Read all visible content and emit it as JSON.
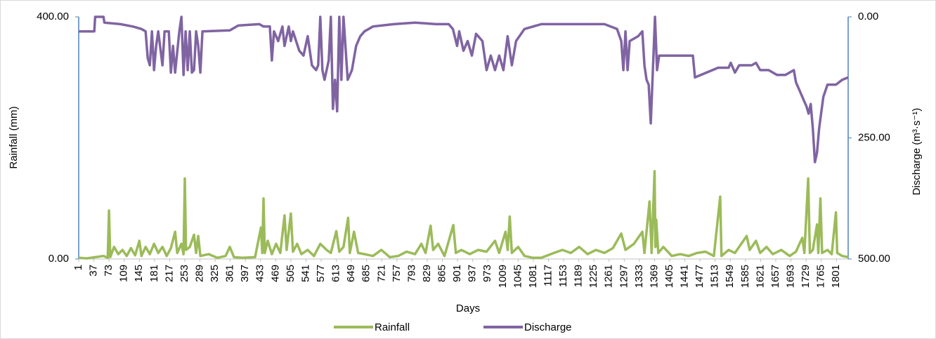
{
  "chart_data": {
    "type": "line",
    "x_label": "Days",
    "y_label": "Rainfall (mm)",
    "y2_label": "Discharge (m³·s⁻¹)",
    "xlim": [
      1,
      1829
    ],
    "xticks": [
      1,
      37,
      73,
      109,
      145,
      181,
      217,
      253,
      289,
      325,
      361,
      397,
      433,
      469,
      505,
      541,
      577,
      613,
      649,
      685,
      721,
      757,
      793,
      829,
      865,
      901,
      937,
      973,
      1009,
      1045,
      1081,
      1117,
      1153,
      1189,
      1225,
      1261,
      1297,
      1333,
      1369,
      1405,
      1441,
      1477,
      1513,
      1549,
      1585,
      1621,
      1657,
      1693,
      1729,
      1765,
      1801
    ],
    "ylim": [
      0,
      400
    ],
    "yticks": [
      {
        "value": 0,
        "label": "0.00"
      },
      {
        "value": 400,
        "label": "400.00"
      }
    ],
    "y2lim": [
      0,
      500
    ],
    "y2_inverted": true,
    "y2ticks": [
      {
        "value": 0,
        "label": "0.00"
      },
      {
        "value": 250,
        "label": "250.00"
      },
      {
        "value": 500,
        "label": "500.00"
      }
    ],
    "legend": "bottom",
    "series": [
      {
        "name": "Rainfall",
        "color": "#9bbb59",
        "x": [
          1,
          20,
          40,
          60,
          70,
          73,
          76,
          85,
          95,
          105,
          115,
          125,
          135,
          145,
          150,
          160,
          170,
          180,
          190,
          200,
          210,
          220,
          230,
          235,
          245,
          250,
          253,
          256,
          265,
          275,
          280,
          285,
          290,
          310,
          330,
          350,
          360,
          370,
          390,
          420,
          434,
          437,
          440,
          443,
          450,
          460,
          470,
          480,
          490,
          495,
          505,
          510,
          520,
          530,
          545,
          560,
          575,
          590,
          600,
          613,
          620,
          630,
          641,
          645,
          655,
          665,
          680,
          700,
          720,
          740,
          760,
          780,
          800,
          815,
          825,
          837,
          843,
          855,
          870,
          891,
          897,
          910,
          930,
          950,
          970,
          990,
          1000,
          1015,
          1020,
          1025,
          1030,
          1045,
          1060,
          1080,
          1100,
          1130,
          1150,
          1170,
          1190,
          1210,
          1230,
          1250,
          1270,
          1290,
          1300,
          1320,
          1340,
          1345,
          1357,
          1362,
          1369,
          1371,
          1373,
          1378,
          1390,
          1410,
          1430,
          1450,
          1470,
          1490,
          1510,
          1525,
          1528,
          1545,
          1560,
          1575,
          1588,
          1595,
          1610,
          1620,
          1635,
          1650,
          1670,
          1690,
          1705,
          1720,
          1725,
          1734,
          1738,
          1745,
          1755,
          1758,
          1763,
          1767,
          1780,
          1790,
          1800,
          1803,
          1815,
          1829
        ],
        "values": [
          2,
          1,
          3,
          5,
          2,
          80,
          3,
          20,
          8,
          15,
          5,
          18,
          6,
          30,
          5,
          20,
          8,
          25,
          10,
          20,
          5,
          18,
          45,
          10,
          25,
          8,
          133,
          15,
          20,
          40,
          10,
          38,
          5,
          8,
          2,
          5,
          20,
          3,
          2,
          3,
          52,
          10,
          100,
          10,
          30,
          8,
          25,
          10,
          72,
          15,
          75,
          12,
          25,
          8,
          15,
          5,
          25,
          15,
          10,
          46,
          12,
          20,
          68,
          10,
          45,
          10,
          8,
          5,
          15,
          3,
          5,
          12,
          8,
          25,
          10,
          55,
          15,
          25,
          5,
          56,
          10,
          15,
          8,
          15,
          12,
          30,
          10,
          45,
          15,
          70,
          10,
          20,
          5,
          2,
          2,
          10,
          15,
          10,
          20,
          8,
          15,
          10,
          18,
          42,
          15,
          25,
          45,
          10,
          95,
          10,
          145,
          20,
          65,
          10,
          20,
          5,
          8,
          5,
          10,
          12,
          5,
          103,
          5,
          15,
          10,
          25,
          38,
          15,
          30,
          10,
          20,
          8,
          15,
          5,
          12,
          35,
          10,
          133,
          10,
          15,
          57,
          10,
          100,
          10,
          15,
          8,
          77,
          10,
          5,
          3
        ]
      },
      {
        "name": "Discharge",
        "color": "#8064a2",
        "axis": "y2",
        "x": [
          1,
          38,
          40,
          60,
          62,
          100,
          130,
          150,
          160,
          165,
          170,
          175,
          180,
          185,
          190,
          200,
          205,
          215,
          220,
          225,
          230,
          240,
          245,
          250,
          255,
          260,
          265,
          270,
          275,
          280,
          285,
          290,
          295,
          360,
          380,
          430,
          440,
          455,
          460,
          465,
          475,
          485,
          490,
          500,
          505,
          510,
          525,
          535,
          545,
          555,
          565,
          570,
          575,
          580,
          585,
          595,
          600,
          605,
          610,
          615,
          620,
          625,
          630,
          640,
          650,
          660,
          670,
          680,
          700,
          750,
          800,
          850,
          880,
          890,
          900,
          905,
          915,
          925,
          935,
          945,
          960,
          970,
          980,
          990,
          1000,
          1010,
          1020,
          1030,
          1040,
          1060,
          1100,
          1200,
          1250,
          1280,
          1290,
          1295,
          1300,
          1305,
          1310,
          1330,
          1340,
          1345,
          1350,
          1355,
          1360,
          1365,
          1370,
          1375,
          1380,
          1385,
          1460,
          1465,
          1520,
          1545,
          1550,
          1560,
          1570,
          1600,
          1610,
          1620,
          1640,
          1660,
          1680,
          1700,
          1705,
          1715,
          1725,
          1730,
          1735,
          1740,
          1745,
          1750,
          1755,
          1760,
          1770,
          1780,
          1790,
          1800,
          1815,
          1829
        ],
        "values": [
          30,
          30,
          0,
          0,
          12,
          15,
          20,
          25,
          30,
          85,
          100,
          30,
          110,
          60,
          30,
          100,
          30,
          30,
          115,
          60,
          115,
          30,
          0,
          120,
          30,
          110,
          30,
          115,
          110,
          30,
          60,
          115,
          30,
          28,
          18,
          15,
          20,
          20,
          90,
          30,
          50,
          20,
          60,
          20,
          50,
          30,
          70,
          80,
          40,
          100,
          110,
          100,
          0,
          110,
          130,
          90,
          0,
          190,
          130,
          195,
          0,
          130,
          0,
          130,
          110,
          60,
          40,
          30,
          20,
          15,
          12,
          15,
          15,
          25,
          60,
          30,
          70,
          50,
          80,
          35,
          50,
          110,
          80,
          110,
          80,
          110,
          40,
          100,
          50,
          25,
          15,
          15,
          15,
          25,
          50,
          110,
          30,
          110,
          50,
          40,
          30,
          100,
          130,
          140,
          220,
          110,
          0,
          110,
          80,
          80,
          80,
          125,
          105,
          105,
          95,
          115,
          100,
          100,
          95,
          110,
          110,
          120,
          120,
          110,
          135,
          155,
          175,
          185,
          200,
          180,
          230,
          300,
          280,
          230,
          165,
          140,
          140,
          140,
          130,
          125
        ]
      }
    ]
  }
}
